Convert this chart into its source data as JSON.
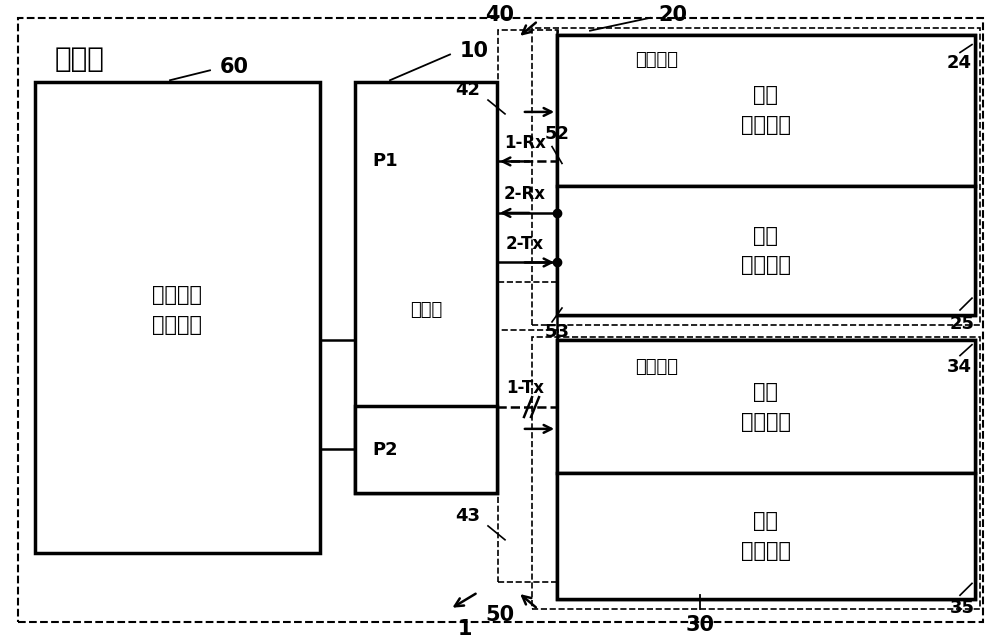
{
  "bg_color": "#ffffff",
  "title_sensor": "传感器",
  "label_60": "60",
  "label_10": "10",
  "label_20": "20",
  "label_24": "24",
  "label_25": "25",
  "label_30": "30",
  "label_34": "34",
  "label_35": "35",
  "label_40": "40",
  "label_42": "42",
  "label_43": "43",
  "label_50": "50",
  "label_52": "52",
  "label_53": "53",
  "label_1": "1",
  "label_P1": "P1",
  "label_P2": "P2",
  "label_processor": "处理器",
  "label_battery": "电池参数\n侦测电路",
  "label_input_interface": "输入介面",
  "label_output_interface": "输出介面",
  "label_serial_input": "串联\n输入介面",
  "label_first_comm": "第一\n通讯介面",
  "label_serial_output": "串联\n输出介面",
  "label_second_comm": "第二\n通讯介面",
  "label_1rx": "1-Rx",
  "label_2rx": "2-Rx",
  "label_2tx": "2-Tx",
  "label_1tx": "1-Tx"
}
